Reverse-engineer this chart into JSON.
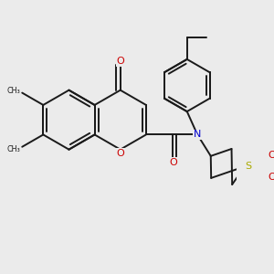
{
  "bg_color": "#ebebeb",
  "bond_color": "#1a1a1a",
  "o_color": "#cc0000",
  "n_color": "#0000cc",
  "s_color": "#aaaa00",
  "lw": 1.4,
  "dbo": 0.048,
  "figsize": [
    3.0,
    3.0
  ],
  "dpi": 100,
  "xlim": [
    0.0,
    3.0
  ],
  "ylim": [
    0.0,
    3.0
  ]
}
